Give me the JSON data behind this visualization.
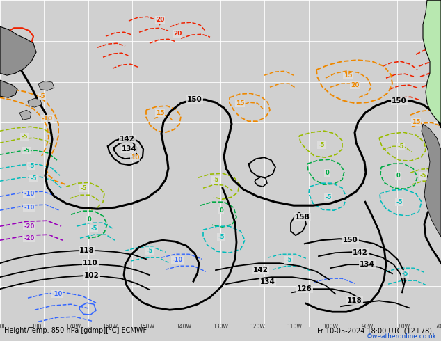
{
  "title_bottom": "Height/Temp. 850 hPa [gdmp][°C] ECMWF",
  "title_date": "Fr 10-05-2024 18:00 UTC (12+78)",
  "watermark": "©weatheronline.co.uk",
  "bg_color": "#d0d0d0",
  "map_bg_color": "#e0e0e0",
  "grid_color": "#ffffff",
  "land_color_green": "#b8e8b0",
  "land_color_gray": "#a8a8a8",
  "c_black": "#000000",
  "c_red": "#ee2200",
  "c_orange": "#ee8800",
  "c_ygreen": "#99bb00",
  "c_green": "#00aa44",
  "c_cyan": "#00bbbb",
  "c_blue": "#3366ff",
  "c_purple": "#9900bb",
  "c_magenta": "#ee0099",
  "fig_width": 6.34,
  "fig_height": 4.9,
  "dpi": 100
}
